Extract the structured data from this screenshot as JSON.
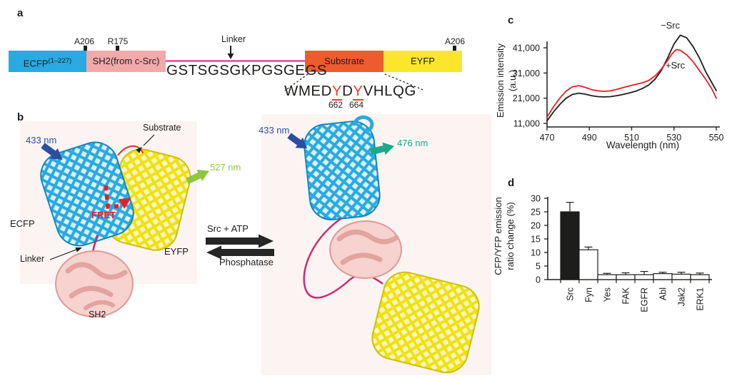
{
  "figure": {
    "panel_a": {
      "label": "a",
      "marker_a206_left": "A206",
      "marker_r175": "R175",
      "marker_linker": "Linker",
      "marker_a206_right": "A206",
      "ecfp_label": "ECFP",
      "ecfp_sup": "(1–227)",
      "sh2_label": "SH2(from c-Src)",
      "substrate_label": "Substrate",
      "eyfp_label": "EYFP",
      "linker_sequence": "GSTSGSGKPGSGEGS",
      "substrate_seq_pre": "WMED",
      "substrate_seq_y1": "Y",
      "substrate_seq_mid": "D",
      "substrate_seq_y2": "Y",
      "substrate_seq_post": "VHLQG",
      "residue_1": "662",
      "residue_2": "664"
    },
    "panel_b": {
      "label": "b",
      "excitation_left": "433 nm",
      "emission_left": "527 nm",
      "fret_label": "FRET",
      "ecfp_label": "ECFP",
      "eyfp_label": "EYFP",
      "sh2_label": "SH2",
      "linker_label": "Linker",
      "substrate_label": "Substrate",
      "reaction_forward": "Src + ATP",
      "reaction_reverse": "Phosphatase",
      "excitation_right": "433 nm",
      "emission_right": "476 nm"
    },
    "panel_c": {
      "label": "c"
    },
    "panel_d": {
      "label": "d"
    }
  },
  "chart_data": [
    {
      "type": "line",
      "panel": "c",
      "xlabel": "Wavelength (nm)",
      "ylabel_line1": "Emission intensity",
      "ylabel_line2": "(a.u.)",
      "xticks": [
        470,
        490,
        510,
        530,
        550
      ],
      "ytick_labels": [
        "11,000",
        "21,000",
        "31,000",
        "41,000"
      ],
      "xlim": [
        470,
        550
      ],
      "ylim": [
        11000,
        47000
      ],
      "grid": false,
      "legend_position": "inline-near-peak",
      "series": [
        {
          "name": "−Src",
          "color": "#1d1d1b",
          "points": [
            [
              470,
              12000
            ],
            [
              473,
              15500
            ],
            [
              476,
              18500
            ],
            [
              479,
              21000
            ],
            [
              482,
              22500
            ],
            [
              485,
              23000
            ],
            [
              488,
              22600
            ],
            [
              491,
              22000
            ],
            [
              494,
              21600
            ],
            [
              497,
              21500
            ],
            [
              500,
              21600
            ],
            [
              503,
              22000
            ],
            [
              506,
              22500
            ],
            [
              509,
              23100
            ],
            [
              512,
              23800
            ],
            [
              515,
              24800
            ],
            [
              518,
              26200
            ],
            [
              521,
              28500
            ],
            [
              524,
              32000
            ],
            [
              527,
              37000
            ],
            [
              530,
              42500
            ],
            [
              533,
              46000
            ],
            [
              536,
              45000
            ],
            [
              539,
              41500
            ],
            [
              542,
              37000
            ],
            [
              545,
              31500
            ],
            [
              548,
              27000
            ],
            [
              550,
              24000
            ]
          ]
        },
        {
          "name": "+Src",
          "color": "#ed1c24",
          "points": [
            [
              470,
              13500
            ],
            [
              473,
              17500
            ],
            [
              476,
              21000
            ],
            [
              479,
              23800
            ],
            [
              482,
              25500
            ],
            [
              485,
              26000
            ],
            [
              488,
              25300
            ],
            [
              491,
              24400
            ],
            [
              494,
              23900
            ],
            [
              497,
              23700
            ],
            [
              500,
              23900
            ],
            [
              503,
              24500
            ],
            [
              506,
              25200
            ],
            [
              509,
              25900
            ],
            [
              512,
              26500
            ],
            [
              515,
              27100
            ],
            [
              518,
              28000
            ],
            [
              521,
              29800
            ],
            [
              524,
              32500
            ],
            [
              527,
              36000
            ],
            [
              529,
              38500
            ],
            [
              531,
              40300
            ],
            [
              533,
              40000
            ],
            [
              536,
              38200
            ],
            [
              539,
              35500
            ],
            [
              542,
              32000
            ],
            [
              545,
              28500
            ],
            [
              548,
              24500
            ],
            [
              550,
              21000
            ]
          ]
        }
      ]
    },
    {
      "type": "bar",
      "panel": "d",
      "ylabel_line1": "CFP/YFP emission",
      "ylabel_line2": "ratio change (%)",
      "categories": [
        "Src",
        "Fyn",
        "Yes",
        "FAK",
        "EGFR",
        "Abl",
        "Jak2",
        "ERK1"
      ],
      "values": [
        25,
        11,
        1.8,
        1.8,
        1.8,
        2.2,
        2.0,
        1.8
      ],
      "errors": [
        3.5,
        1.0,
        0.5,
        0.7,
        1.2,
        0.5,
        0.7,
        0.6
      ],
      "bar_colors": [
        "#1d1d1b",
        "#ffffff",
        "#ffffff",
        "#ffffff",
        "#ffffff",
        "#ffffff",
        "#ffffff",
        "#ffffff"
      ],
      "yticks": [
        0,
        5,
        10,
        15,
        20,
        25,
        30
      ],
      "ylim": [
        0,
        30
      ],
      "grid": false
    }
  ],
  "colors": {
    "ink": "#1d1d1b",
    "ecfp_blue": "#29aae1",
    "ecfp_edge": "#1486be",
    "sh2_pink": "#f2a9a9",
    "sh2_fill": "#f7d2cf",
    "sh2_edge": "#dc9a96",
    "substrate_orange": "#ee5b2e",
    "eyfp_yellow": "#fce62c",
    "eyfp_ribbon": "#f0e112",
    "eyfp_edge": "#cfc009",
    "linker_magenta": "#ed5fa5",
    "strand_magenta": "#cc2b6e",
    "excitation_blue": "#2b4ea2",
    "emission_green": "#8dc63f",
    "emission_teal": "#1ba98b",
    "fret_red": "#ed1c24",
    "structure_bg": "#fcf4f3"
  }
}
